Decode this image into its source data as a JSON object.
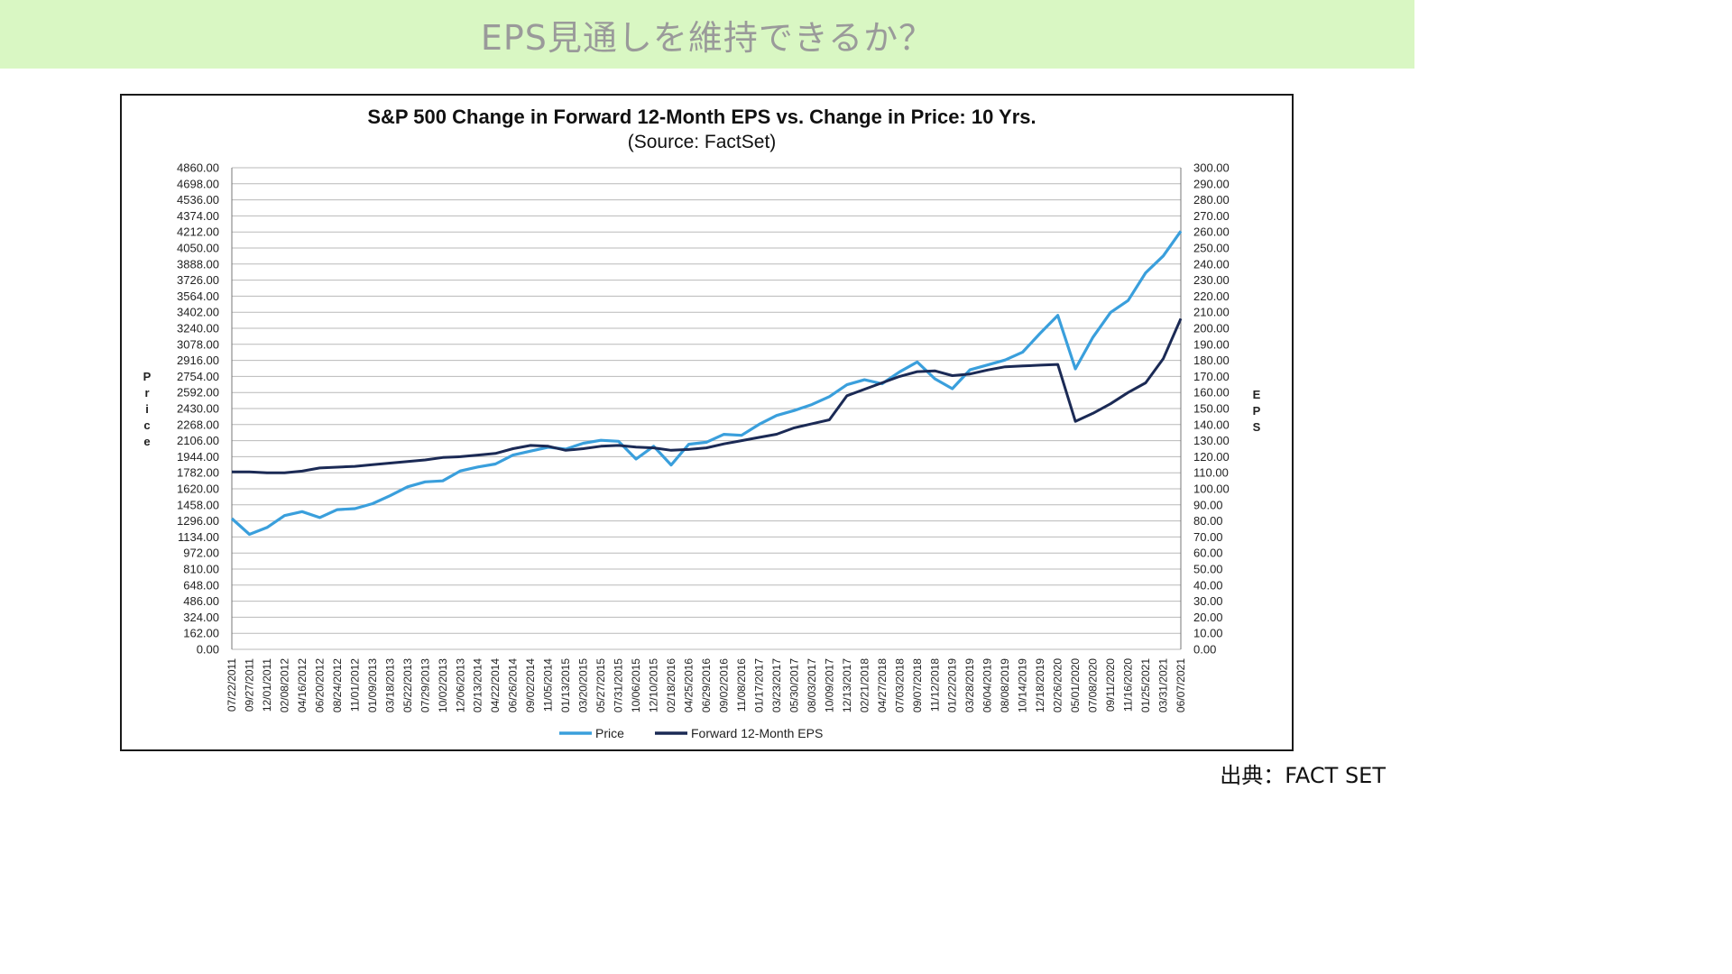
{
  "slide": {
    "title": "EPS見通しを維持できるか？",
    "source": "出典：FACT SET",
    "header_color": "#d9f7c3"
  },
  "chart_data": {
    "type": "line",
    "title": "S&P 500 Change in Forward 12-Month EPS vs. Change in Price: 10 Yrs.",
    "subtitle": "(Source: FactSet)",
    "ylabel_left": "Price",
    "ylabel_right": "EPS",
    "ylim_left": [
      0,
      4860
    ],
    "ylim_right": [
      0,
      300
    ],
    "yticks_left": [
      "4860.00",
      "4698.00",
      "4536.00",
      "4374.00",
      "4212.00",
      "4050.00",
      "3888.00",
      "3726.00",
      "3564.00",
      "3402.00",
      "3240.00",
      "3078.00",
      "2916.00",
      "2754.00",
      "2592.00",
      "2430.00",
      "2268.00",
      "2106.00",
      "1944.00",
      "1782.00",
      "1620.00",
      "1458.00",
      "1296.00",
      "1134.00",
      "972.00",
      "810.00",
      "648.00",
      "486.00",
      "324.00",
      "162.00",
      "0.00"
    ],
    "yticks_right": [
      "300.00",
      "290.00",
      "280.00",
      "270.00",
      "260.00",
      "250.00",
      "240.00",
      "230.00",
      "220.00",
      "210.00",
      "200.00",
      "190.00",
      "180.00",
      "170.00",
      "160.00",
      "150.00",
      "140.00",
      "130.00",
      "120.00",
      "110.00",
      "100.00",
      "90.00",
      "80.00",
      "70.00",
      "60.00",
      "50.00",
      "40.00",
      "30.00",
      "20.00",
      "10.00",
      "0.00"
    ],
    "x_tick_labels": [
      "07/22/2011",
      "09/27/2011",
      "12/01/2011",
      "02/08/2012",
      "04/16/2012",
      "06/20/2012",
      "08/24/2012",
      "11/01/2012",
      "01/09/2013",
      "03/18/2013",
      "05/22/2013",
      "07/29/2013",
      "10/02/2013",
      "12/06/2013",
      "02/13/2014",
      "04/22/2014",
      "06/26/2014",
      "09/02/2014",
      "11/05/2014",
      "01/13/2015",
      "03/20/2015",
      "05/27/2015",
      "07/31/2015",
      "10/06/2015",
      "12/10/2015",
      "02/18/2016",
      "04/25/2016",
      "06/29/2016",
      "09/02/2016",
      "11/08/2016",
      "01/17/2017",
      "03/23/2017",
      "05/30/2017",
      "08/03/2017",
      "10/09/2017",
      "12/13/2017",
      "02/21/2018",
      "04/27/2018",
      "07/03/2018",
      "09/07/2018",
      "11/12/2018",
      "01/22/2019",
      "03/28/2019",
      "06/04/2019",
      "08/08/2019",
      "10/14/2019",
      "12/18/2019",
      "02/26/2020",
      "05/01/2020",
      "07/08/2020",
      "09/11/2020",
      "11/16/2020",
      "01/25/2021",
      "03/31/2021",
      "06/07/2021"
    ],
    "x": [
      "2011-07-22",
      "2011-09-27",
      "2011-12-01",
      "2012-02-08",
      "2012-04-16",
      "2012-06-20",
      "2012-08-24",
      "2012-11-01",
      "2013-01-09",
      "2013-03-18",
      "2013-05-22",
      "2013-07-29",
      "2013-10-02",
      "2013-12-06",
      "2014-02-13",
      "2014-04-22",
      "2014-06-26",
      "2014-09-02",
      "2014-11-05",
      "2015-01-13",
      "2015-03-20",
      "2015-05-27",
      "2015-07-31",
      "2015-10-06",
      "2015-12-10",
      "2016-02-18",
      "2016-04-25",
      "2016-06-29",
      "2016-09-02",
      "2016-11-08",
      "2017-01-17",
      "2017-03-23",
      "2017-05-30",
      "2017-08-03",
      "2017-10-09",
      "2017-12-13",
      "2018-02-21",
      "2018-04-27",
      "2018-07-03",
      "2018-09-07",
      "2018-11-12",
      "2019-01-22",
      "2019-03-28",
      "2019-06-04",
      "2019-08-08",
      "2019-10-14",
      "2019-12-18",
      "2020-02-26",
      "2020-05-01",
      "2020-07-08",
      "2020-09-11",
      "2020-11-16",
      "2021-01-25",
      "2021-03-31",
      "2021-06-07"
    ],
    "series": [
      {
        "name": "Price",
        "axis": "left",
        "color": "#3a9fdc",
        "values": [
          1320,
          1160,
          1230,
          1350,
          1390,
          1330,
          1410,
          1420,
          1470,
          1550,
          1640,
          1690,
          1700,
          1800,
          1840,
          1870,
          1960,
          2000,
          2040,
          2020,
          2080,
          2110,
          2100,
          1920,
          2050,
          1860,
          2070,
          2090,
          2170,
          2160,
          2270,
          2360,
          2410,
          2470,
          2550,
          2670,
          2720,
          2680,
          2800,
          2900,
          2730,
          2630,
          2820,
          2870,
          2920,
          3000,
          3190,
          3370,
          2830,
          3150,
          3400,
          3520,
          3800,
          3970,
          4220
        ]
      },
      {
        "name": "Forward 12-Month EPS",
        "axis": "right",
        "color": "#1b2a55",
        "values": [
          110.5,
          110.5,
          110,
          110,
          111,
          113,
          113.5,
          114,
          115,
          116,
          117,
          118,
          119.5,
          120,
          121,
          122,
          125,
          127,
          126.5,
          124,
          125,
          126.5,
          127,
          126,
          125.5,
          124,
          124.5,
          125.5,
          128,
          130,
          132,
          134,
          138,
          140.5,
          143,
          158,
          162,
          166,
          170,
          173,
          173.5,
          170.5,
          171.5,
          174,
          176,
          176.5,
          177,
          177.5,
          142,
          147,
          153,
          160,
          166,
          181,
          206
        ]
      }
    ],
    "legend": {
      "position": "bottom",
      "entries": [
        "Price",
        "Forward 12-Month EPS"
      ]
    },
    "grid": true
  }
}
